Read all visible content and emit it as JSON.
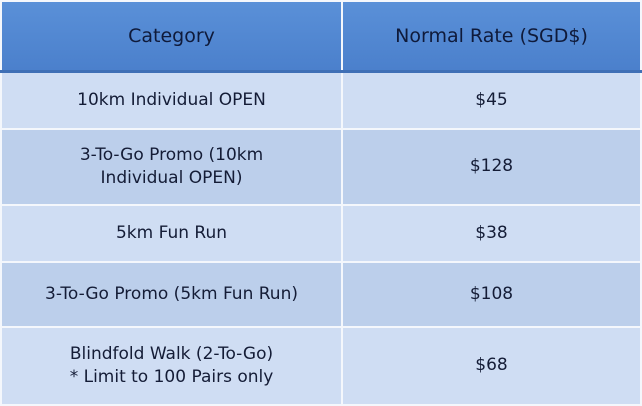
{
  "headers": [
    "Category",
    "Normal Rate (SGD$)"
  ],
  "rows": [
    {
      "category": "10km Individual OPEN",
      "rate": "$45"
    },
    {
      "category": "3-To-Go Promo (10km Individual OPEN)",
      "rate": "$128"
    },
    {
      "category": "5km Fun Run",
      "rate": "$38"
    },
    {
      "category": "3-To-Go Promo (5km Fun Run)",
      "rate": "$108"
    },
    {
      "category": "Blindfold Walk (2-To-Go)",
      "note": "* Limit to 100 Pairs only",
      "rate": "$68"
    }
  ],
  "colors": {
    "header": "#4f86d0",
    "row_light": "#cfddf3",
    "row_dark": "#bccfeb",
    "text": "#141c36"
  }
}
